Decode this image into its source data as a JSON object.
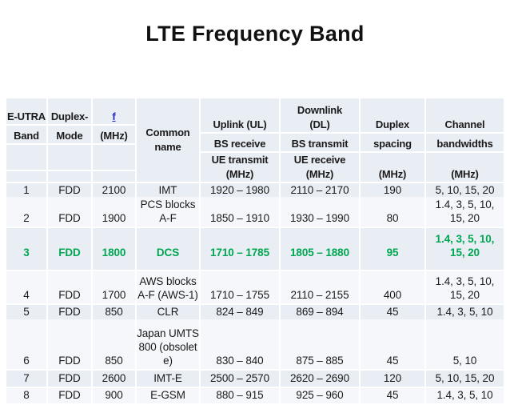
{
  "title": "LTE Frequency Band",
  "colors": {
    "row_band_light": "#e9edf4",
    "row_band_lighter": "#f5f7fb",
    "highlight_green": "#00A651",
    "f_link_blue": "#2727cc"
  },
  "table": {
    "header": {
      "columns": [
        {
          "id": "band",
          "segments": [
            [
              "E-UTRA"
            ],
            [
              "Band"
            ],
            [
              ""
            ],
            [
              ""
            ]
          ]
        },
        {
          "id": "mode",
          "segments": [
            [
              "Duplex-"
            ],
            [
              "Mode"
            ],
            [
              ""
            ],
            [
              ""
            ]
          ]
        },
        {
          "id": "f",
          "segments": [
            [
              "f"
            ],
            [
              "(MHz)"
            ],
            [
              ""
            ],
            [
              ""
            ]
          ]
        },
        {
          "id": "common",
          "segments": [
            [
              "Common",
              "name"
            ]
          ]
        },
        {
          "id": "uplink",
          "segments": [
            [
              "Uplink (UL)"
            ],
            [
              "BS receive"
            ],
            [
              "UE transmit",
              "(MHz)"
            ]
          ]
        },
        {
          "id": "downlink",
          "segments": [
            [
              "Downlink",
              "(DL)"
            ],
            [
              "BS transmit"
            ],
            [
              "UE receive",
              "(MHz)"
            ]
          ]
        },
        {
          "id": "spacing",
          "segments": [
            [
              "Duplex"
            ],
            [
              "spacing"
            ],
            [
              "(MHz)"
            ]
          ]
        },
        {
          "id": "bandwidths",
          "segments": [
            [
              "Channel"
            ],
            [
              "bandwidths"
            ],
            [
              "(MHz)"
            ]
          ]
        }
      ]
    },
    "rows": [
      {
        "band": "1",
        "mode": "FDD",
        "f": "2100",
        "common": "IMT",
        "ul": "1920 – 1980",
        "dl": "2110 – 2170",
        "spacing": "190",
        "bw": "5, 10, 15, 20",
        "green": false
      },
      {
        "band": "2",
        "mode": "FDD",
        "f": "1900",
        "common": "PCS blocks\nA-F",
        "ul": "1850 – 1910",
        "dl": "1930 – 1990",
        "spacing": "80",
        "bw": "1.4, 3, 5, 10,\n15, 20",
        "green": false
      },
      {
        "band": "3",
        "mode": "FDD",
        "f": "1800",
        "common": "DCS",
        "ul": "1710 – 1785",
        "dl": "1805 – 1880",
        "spacing": "95",
        "bw": "1.4, 3, 5, 10,\n15, 20",
        "green": true
      },
      {
        "band": "4",
        "mode": "FDD",
        "f": "1700",
        "common": "AWS blocks\nA-F (AWS-1)",
        "ul": "1710 – 1755",
        "dl": "2110 – 2155",
        "spacing": "400",
        "bw": "1.4, 3, 5, 10,\n15, 20",
        "green": false
      },
      {
        "band": "5",
        "mode": "FDD",
        "f": "850",
        "common": "CLR",
        "ul": "824 – 849",
        "dl": "869 – 894",
        "spacing": "45",
        "bw": "1.4, 3, 5, 10",
        "green": false
      },
      {
        "band": "6",
        "mode": "FDD",
        "f": "850",
        "common": "Japan UMTS\n800 (obsolet\ne)",
        "ul": "830 – 840",
        "dl": "875 – 885",
        "spacing": "45",
        "bw": "5, 10",
        "green": false
      },
      {
        "band": "7",
        "mode": "FDD",
        "f": "2600",
        "common": "IMT-E",
        "ul": "2500 – 2570",
        "dl": "2620 – 2690",
        "spacing": "120",
        "bw": "5, 10, 15, 20",
        "green": false
      },
      {
        "band": "8",
        "mode": "FDD",
        "f": "900",
        "common": "E-GSM",
        "ul": "880 – 915",
        "dl": "925 – 960",
        "spacing": "45",
        "bw": "1.4, 3, 5, 10",
        "green": false
      }
    ]
  }
}
